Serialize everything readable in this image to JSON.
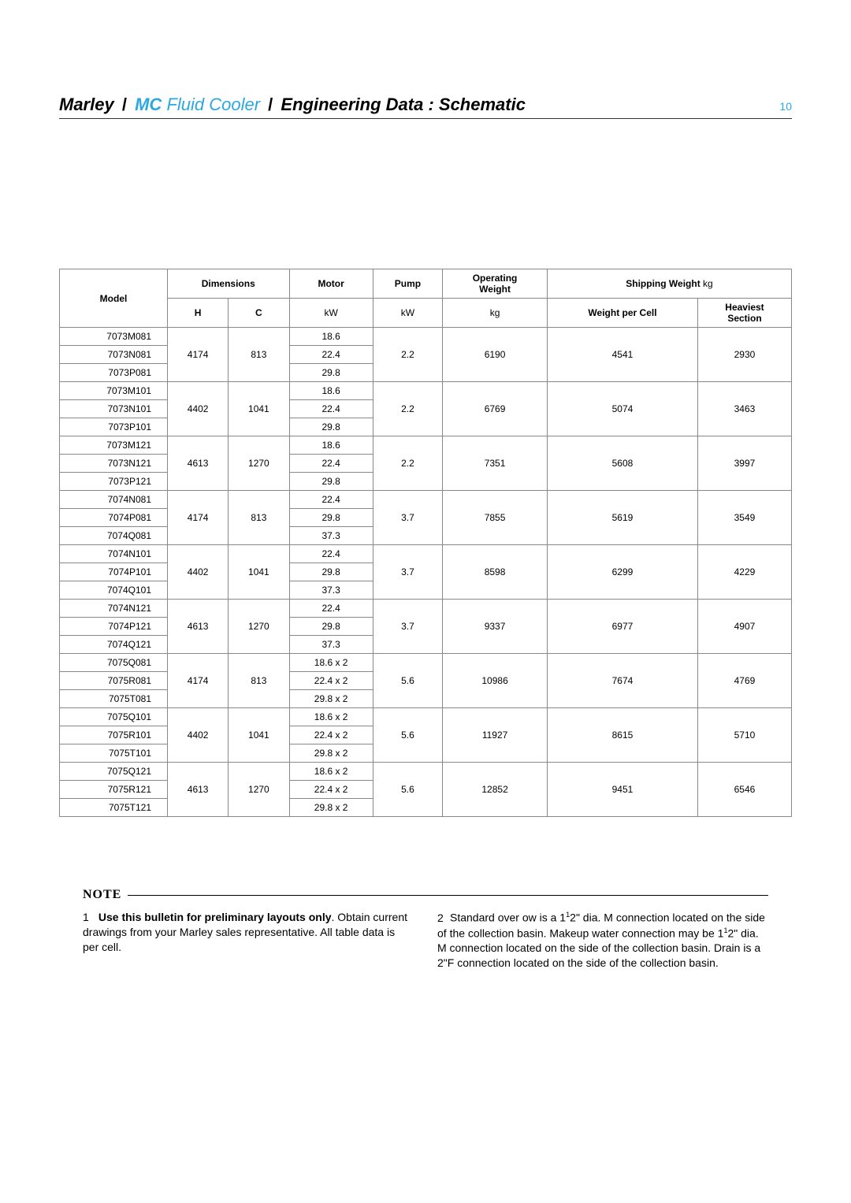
{
  "page_number": "10",
  "title": {
    "brand": "Marley",
    "slash": "/",
    "mc": "MC",
    "product": "Fluid Cooler",
    "slash2": "/",
    "section": "Engineering Data : Schematic"
  },
  "table": {
    "headers": {
      "model": "Model",
      "dimensions": "Dimensions",
      "H": "H",
      "C": "C",
      "motor": "Motor",
      "motor_unit": "kW",
      "pump": "Pump",
      "pump_unit": "kW",
      "op_weight": "Operating",
      "op_weight2": "Weight",
      "op_weight_unit": "kg",
      "ship_weight": "Shipping Weight",
      "ship_weight_unit": "kg",
      "wpc": "Weight per Cell",
      "heaviest": "Heaviest",
      "section": "Section"
    },
    "groups": [
      {
        "H": "4174",
        "C": "813",
        "pump": "2.2",
        "op": "6190",
        "wpc": "4541",
        "hs": "2930",
        "rows": [
          {
            "model": "7073M081",
            "motor": "18.6"
          },
          {
            "model": "7073N081",
            "motor": "22.4"
          },
          {
            "model": "7073P081",
            "motor": "29.8"
          }
        ]
      },
      {
        "H": "4402",
        "C": "1041",
        "pump": "2.2",
        "op": "6769",
        "wpc": "5074",
        "hs": "3463",
        "rows": [
          {
            "model": "7073M101",
            "motor": "18.6"
          },
          {
            "model": "7073N101",
            "motor": "22.4"
          },
          {
            "model": "7073P101",
            "motor": "29.8"
          }
        ]
      },
      {
        "H": "4613",
        "C": "1270",
        "pump": "2.2",
        "op": "7351",
        "wpc": "5608",
        "hs": "3997",
        "rows": [
          {
            "model": "7073M121",
            "motor": "18.6"
          },
          {
            "model": "7073N121",
            "motor": "22.4"
          },
          {
            "model": "7073P121",
            "motor": "29.8"
          }
        ]
      },
      {
        "H": "4174",
        "C": "813",
        "pump": "3.7",
        "op": "7855",
        "wpc": "5619",
        "hs": "3549",
        "rows": [
          {
            "model": "7074N081",
            "motor": "22.4"
          },
          {
            "model": "7074P081",
            "motor": "29.8"
          },
          {
            "model": "7074Q081",
            "motor": "37.3"
          }
        ]
      },
      {
        "H": "4402",
        "C": "1041",
        "pump": "3.7",
        "op": "8598",
        "wpc": "6299",
        "hs": "4229",
        "rows": [
          {
            "model": "7074N101",
            "motor": "22.4"
          },
          {
            "model": "7074P101",
            "motor": "29.8"
          },
          {
            "model": "7074Q101",
            "motor": "37.3"
          }
        ]
      },
      {
        "H": "4613",
        "C": "1270",
        "pump": "3.7",
        "op": "9337",
        "wpc": "6977",
        "hs": "4907",
        "rows": [
          {
            "model": "7074N121",
            "motor": "22.4"
          },
          {
            "model": "7074P121",
            "motor": "29.8"
          },
          {
            "model": "7074Q121",
            "motor": "37.3"
          }
        ]
      },
      {
        "H": "4174",
        "C": "813",
        "pump": "5.6",
        "op": "10986",
        "wpc": "7674",
        "hs": "4769",
        "rows": [
          {
            "model": "7075Q081",
            "motor": "18.6 x 2"
          },
          {
            "model": "7075R081",
            "motor": "22.4 x 2"
          },
          {
            "model": "7075T081",
            "motor": "29.8 x 2"
          }
        ]
      },
      {
        "H": "4402",
        "C": "1041",
        "pump": "5.6",
        "op": "11927",
        "wpc": "8615",
        "hs": "5710",
        "rows": [
          {
            "model": "7075Q101",
            "motor": "18.6 x 2"
          },
          {
            "model": "7075R101",
            "motor": "22.4 x 2"
          },
          {
            "model": "7075T101",
            "motor": "29.8 x 2"
          }
        ]
      },
      {
        "H": "4613",
        "C": "1270",
        "pump": "5.6",
        "op": "12852",
        "wpc": "9451",
        "hs": "6546",
        "rows": [
          {
            "model": "7075Q121",
            "motor": "18.6 x 2"
          },
          {
            "model": "7075R121",
            "motor": "22.4 x 2"
          },
          {
            "model": "7075T121",
            "motor": "29.8 x 2"
          }
        ]
      }
    ]
  },
  "notes": {
    "label": "NOTE",
    "n1_num": "1",
    "n1_bold": "Use this bulletin for preliminary layouts only",
    "n1_rest": ". Obtain current drawings from your Marley sales representative. All table data is per cell.",
    "n2_num": "2",
    "n2_a": "Standard over ow is a 1",
    "n2_b": "1",
    "n2_c": "2\" dia. M connection located on the side of the collection basin. Makeup water connection may be 1",
    "n2_d": "1",
    "n2_e": "2\" dia. M connection located on the side of the collection basin. Drain is a 2\"F connection located on the side of the collection basin."
  }
}
